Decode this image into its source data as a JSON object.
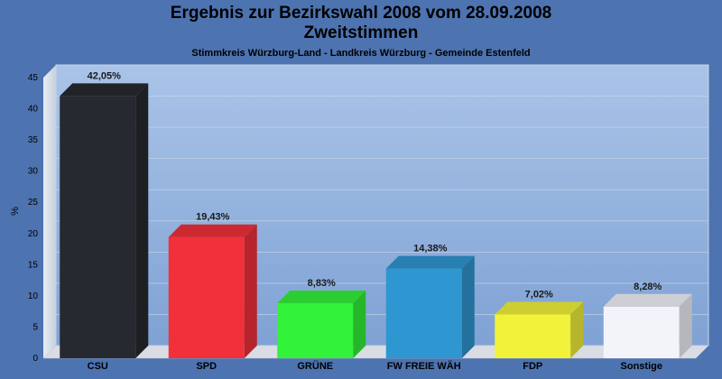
{
  "chart_data": {
    "type": "bar",
    "title_line1": "Ergebnis zur Bezirkswahl 2008 vom 28.09.2008",
    "title_line2": "Zweitstimmen",
    "subtitle": "Stimmkreis Würzburg-Land - Landkreis Würzburg - Gemeinde Estenfeld",
    "ylabel": "%",
    "ylim": [
      0,
      45
    ],
    "yticks": [
      0,
      5,
      10,
      15,
      20,
      25,
      30,
      35,
      40,
      45
    ],
    "categories": [
      "CSU",
      "SPD",
      "GRÜNE",
      "FW FREIE WÄH",
      "FDP",
      "Sonstige"
    ],
    "values": [
      42.05,
      19.43,
      8.83,
      14.38,
      7.02,
      8.28
    ],
    "value_labels": [
      "42,05%",
      "19,43%",
      "8,83%",
      "14,38%",
      "7,02%",
      "8,28%"
    ],
    "colors": [
      "#26292f",
      "#f2303a",
      "#33f23a",
      "#2e96d0",
      "#f2f23a",
      "#f2f4fa"
    ],
    "grid": true
  }
}
